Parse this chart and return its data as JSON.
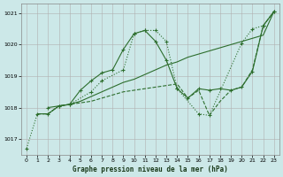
{
  "background_color": "#cce8e8",
  "grid_color": "#b0b0b0",
  "line_color": "#2d6e2d",
  "xlabel": "Graphe pression niveau de la mer (hPa)",
  "xlim": [
    -0.5,
    23.5
  ],
  "ylim": [
    1016.5,
    1021.3
  ],
  "yticks": [
    1017,
    1018,
    1019,
    1020,
    1021
  ],
  "xticks": [
    0,
    1,
    2,
    3,
    4,
    5,
    6,
    7,
    8,
    9,
    10,
    11,
    12,
    13,
    14,
    15,
    16,
    17,
    18,
    19,
    20,
    21,
    22,
    23
  ],
  "series": [
    {
      "x": [
        0,
        1,
        2,
        3,
        4,
        6,
        7,
        9,
        10,
        11,
        12,
        13,
        14,
        16,
        17,
        20,
        21,
        22,
        23
      ],
      "y": [
        1016.7,
        1017.8,
        1017.8,
        1018.05,
        1018.1,
        1018.5,
        1018.85,
        1019.2,
        1020.35,
        1020.45,
        1020.45,
        1020.1,
        1018.6,
        1017.8,
        1017.75,
        1020.05,
        1020.5,
        1020.6,
        1021.05
      ],
      "style": "dotted",
      "marker": "+"
    },
    {
      "x": [
        2,
        3,
        4,
        5,
        6,
        7,
        8,
        9,
        10,
        11,
        12,
        13,
        14,
        15,
        16,
        17,
        18,
        19,
        20,
        21,
        22,
        23
      ],
      "y": [
        1018.0,
        1018.05,
        1018.1,
        1018.55,
        1018.85,
        1019.1,
        1019.2,
        1019.85,
        1020.35,
        1020.45,
        1020.1,
        1019.5,
        1018.6,
        1018.3,
        1018.6,
        1018.55,
        1018.6,
        1018.55,
        1018.65,
        1019.15,
        1020.6,
        1021.05
      ],
      "style": "solid",
      "marker": "+"
    },
    {
      "x": [
        1,
        2,
        3,
        4,
        5,
        6,
        7,
        8,
        9,
        10,
        11,
        12,
        13,
        14,
        15,
        16,
        17,
        18,
        19,
        20,
        21,
        22,
        23
      ],
      "y": [
        1017.8,
        1017.8,
        1018.05,
        1018.1,
        1018.2,
        1018.35,
        1018.5,
        1018.65,
        1018.8,
        1018.9,
        1019.05,
        1019.2,
        1019.35,
        1019.45,
        1019.6,
        1019.7,
        1019.8,
        1019.9,
        1020.0,
        1020.1,
        1020.2,
        1020.3,
        1021.05
      ],
      "style": "solid",
      "marker": null
    },
    {
      "x": [
        1,
        2,
        3,
        4,
        5,
        6,
        7,
        8,
        9,
        10,
        11,
        12,
        13,
        14,
        15,
        16,
        17,
        18,
        19,
        20,
        21,
        22,
        23
      ],
      "y": [
        1017.8,
        1017.8,
        1018.05,
        1018.1,
        1018.15,
        1018.2,
        1018.3,
        1018.4,
        1018.5,
        1018.55,
        1018.6,
        1018.65,
        1018.7,
        1018.75,
        1018.3,
        1018.55,
        1017.75,
        1018.2,
        1018.55,
        1018.65,
        1019.2,
        1020.6,
        1021.05
      ],
      "style": "dashed",
      "marker": null
    }
  ]
}
